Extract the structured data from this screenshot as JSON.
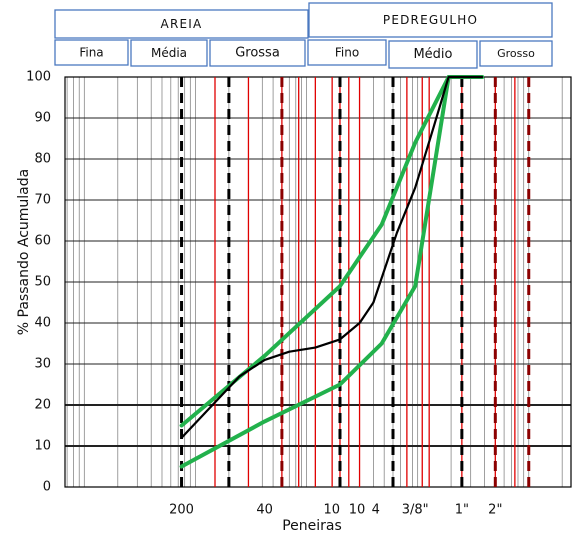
{
  "classification": {
    "top": [
      {
        "key": "areia",
        "label": "AREIA"
      },
      {
        "key": "pedregulho",
        "label": "PEDREGULHO"
      }
    ],
    "sub": [
      {
        "key": "fina",
        "label": "Fina"
      },
      {
        "key": "media-areia",
        "label": "Média"
      },
      {
        "key": "grossa",
        "label": "Grossa"
      },
      {
        "key": "fino",
        "label": "Fino"
      },
      {
        "key": "medio",
        "label": "Médio"
      },
      {
        "key": "grosso",
        "label": "Grosso"
      }
    ]
  },
  "chart_data": {
    "type": "line",
    "title": "",
    "xlabel": "Peneiras",
    "ylabel": "% Passando Acumulada",
    "x_scale": "log",
    "x_unit": "mm",
    "ylim": [
      0,
      100
    ],
    "y_ticks": [
      0,
      10,
      20,
      30,
      40,
      50,
      60,
      70,
      80,
      90,
      100
    ],
    "sieve_labels": [
      {
        "label": "200",
        "size": 0.075
      },
      {
        "label": "40",
        "size": 0.42
      },
      {
        "label": "10",
        "size": 2.0
      },
      {
        "label": "10",
        "size": 2.4
      },
      {
        "label": "4",
        "size": 4.2
      },
      {
        "label": "3/8\"",
        "size": 9.5
      },
      {
        "label": "1\"",
        "size": 25
      },
      {
        "label": "2\"",
        "size": 50
      }
    ],
    "colors": {
      "grid": "#888888",
      "major_grid": "#000000",
      "sieve_line": "#e00000",
      "class_boundary": "#000000",
      "gravel_boundary": "#8b0000",
      "envelope": "#22b14c",
      "curve": "#000000"
    },
    "series": [
      {
        "role": "envelope-upper",
        "color": "#22b14c",
        "points": [
          [
            0.075,
            15
          ],
          [
            0.42,
            32
          ],
          [
            2.0,
            49
          ],
          [
            4.75,
            64
          ],
          [
            9.5,
            84
          ],
          [
            19,
            100
          ],
          [
            38,
            100
          ]
        ]
      },
      {
        "role": "envelope-lower",
        "color": "#22b14c",
        "points": [
          [
            0.075,
            5
          ],
          [
            0.42,
            16
          ],
          [
            2.0,
            25
          ],
          [
            4.75,
            35
          ],
          [
            9.5,
            49
          ],
          [
            19,
            100
          ],
          [
            38,
            100
          ]
        ]
      },
      {
        "role": "curve",
        "color": "#000000",
        "points": [
          [
            0.075,
            12
          ],
          [
            0.25,
            27
          ],
          [
            0.42,
            31
          ],
          [
            0.7,
            33
          ],
          [
            1.2,
            34
          ],
          [
            2.0,
            36
          ],
          [
            3.0,
            40
          ],
          [
            4.0,
            45
          ],
          [
            4.75,
            51
          ],
          [
            6.5,
            62
          ],
          [
            9.5,
            73
          ],
          [
            14,
            88
          ],
          [
            19,
            100
          ],
          [
            38,
            100
          ]
        ]
      }
    ]
  }
}
